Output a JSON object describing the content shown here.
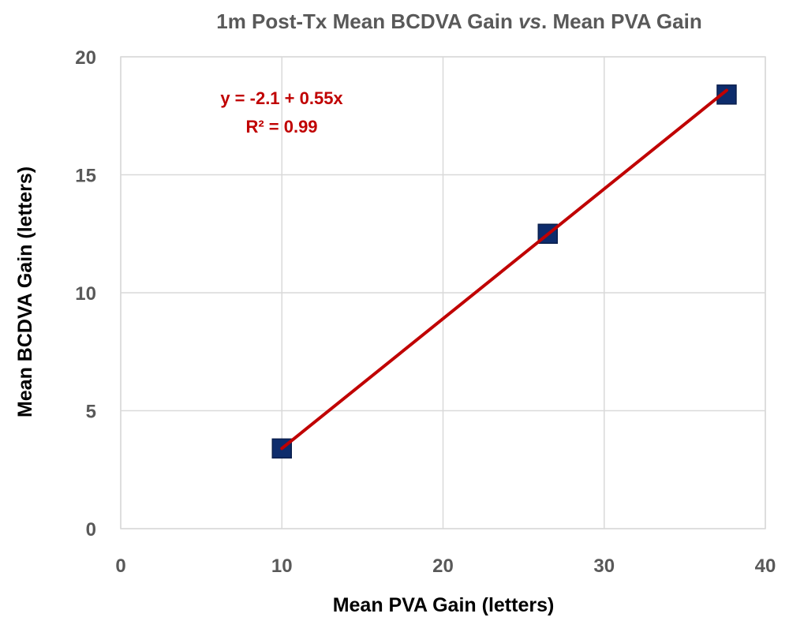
{
  "chart_data": {
    "type": "scatter",
    "title": {
      "prefix": "1m Post-Tx Mean BCDVA Gain ",
      "italic": "vs",
      "suffix": ". Mean PVA Gain"
    },
    "xlabel": "Mean PVA Gain (letters)",
    "ylabel": "Mean BCDVA Gain (letters)",
    "xlim": [
      0,
      40
    ],
    "ylim": [
      0,
      20
    ],
    "xticks": [
      0,
      10,
      20,
      30,
      40
    ],
    "yticks": [
      0,
      5,
      10,
      15,
      20
    ],
    "grid": true,
    "series": [
      {
        "marker": "square",
        "color": "#0d2c6c",
        "x": [
          10.0,
          26.5,
          37.6
        ],
        "y": [
          3.4,
          12.5,
          18.4
        ]
      }
    ],
    "trendline": {
      "color": "#c00000",
      "intercept": -2.1,
      "slope": 0.55,
      "x_range": [
        10.0,
        37.6
      ],
      "equation_label": "y = -2.1 + 0.55x",
      "r2_label": "R² = 0.99"
    }
  }
}
